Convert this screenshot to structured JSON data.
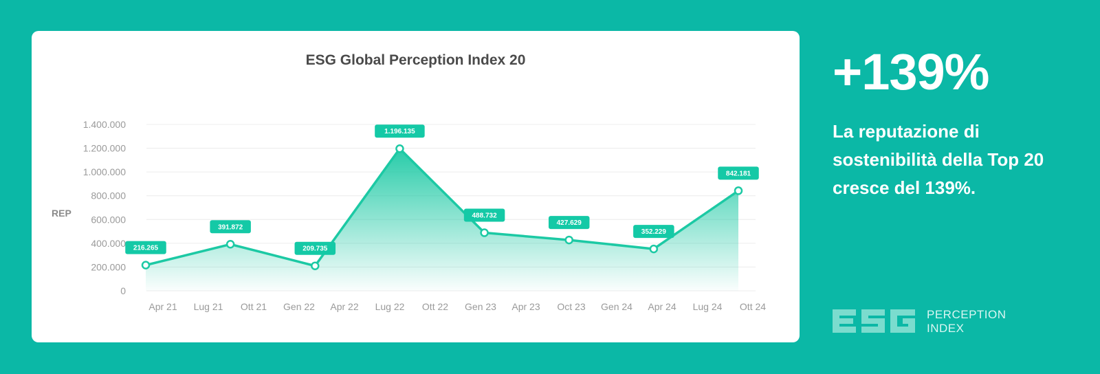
{
  "chart_data": {
    "type": "area",
    "title": "ESG Global Perception Index 20",
    "ylabel": "REP",
    "xlabel": "",
    "ylim": [
      0,
      1400000
    ],
    "yticks": [
      0,
      200000,
      400000,
      600000,
      800000,
      1000000,
      1200000,
      1400000
    ],
    "ytick_labels": [
      "0",
      "200.000",
      "400.000",
      "600.000",
      "800.000",
      "1.000.000",
      "1.200.000",
      "1.400.000"
    ],
    "categories": [
      "Apr 21",
      "Lug 21",
      "Ott 21",
      "Gen 22",
      "Apr 22",
      "Lug 22",
      "Ott 22",
      "Gen 23",
      "Apr 23",
      "Oct 23",
      "Gen 24",
      "Apr 24",
      "Lug 24",
      "Ott 24"
    ],
    "points": [
      {
        "x": "Apr 21",
        "y": 216265,
        "label": "216.265"
      },
      {
        "x": "Ott 21",
        "y": 391872,
        "label": "391.872"
      },
      {
        "x": "Apr 22",
        "y": 209735,
        "label": "209.735"
      },
      {
        "x": "Ott 22",
        "y": 1196135,
        "label": "1.196.135"
      },
      {
        "x": "Apr 23",
        "y": 488732,
        "label": "488.732"
      },
      {
        "x": "Ott 23",
        "y": 427629,
        "label": "427.629"
      },
      {
        "x": "Apr 24",
        "y": 352229,
        "label": "352.229"
      },
      {
        "x": "Ott 24",
        "y": 842181,
        "label": "842.181"
      }
    ],
    "grid": true,
    "colors": {
      "line": "#1cc9a4",
      "label_bg": "#14c9a6",
      "area": "#1cc9a4",
      "grid": "#ececec"
    }
  },
  "highlight": {
    "value": "+139%",
    "text": "La reputazione di sostenibilità della Top 20 cresce del 139%."
  },
  "logo": {
    "mark": "ESG",
    "line1": "PERCEPTION",
    "line2": "INDEX"
  },
  "colors": {
    "background": "#0bb8a6",
    "card": "#ffffff"
  }
}
